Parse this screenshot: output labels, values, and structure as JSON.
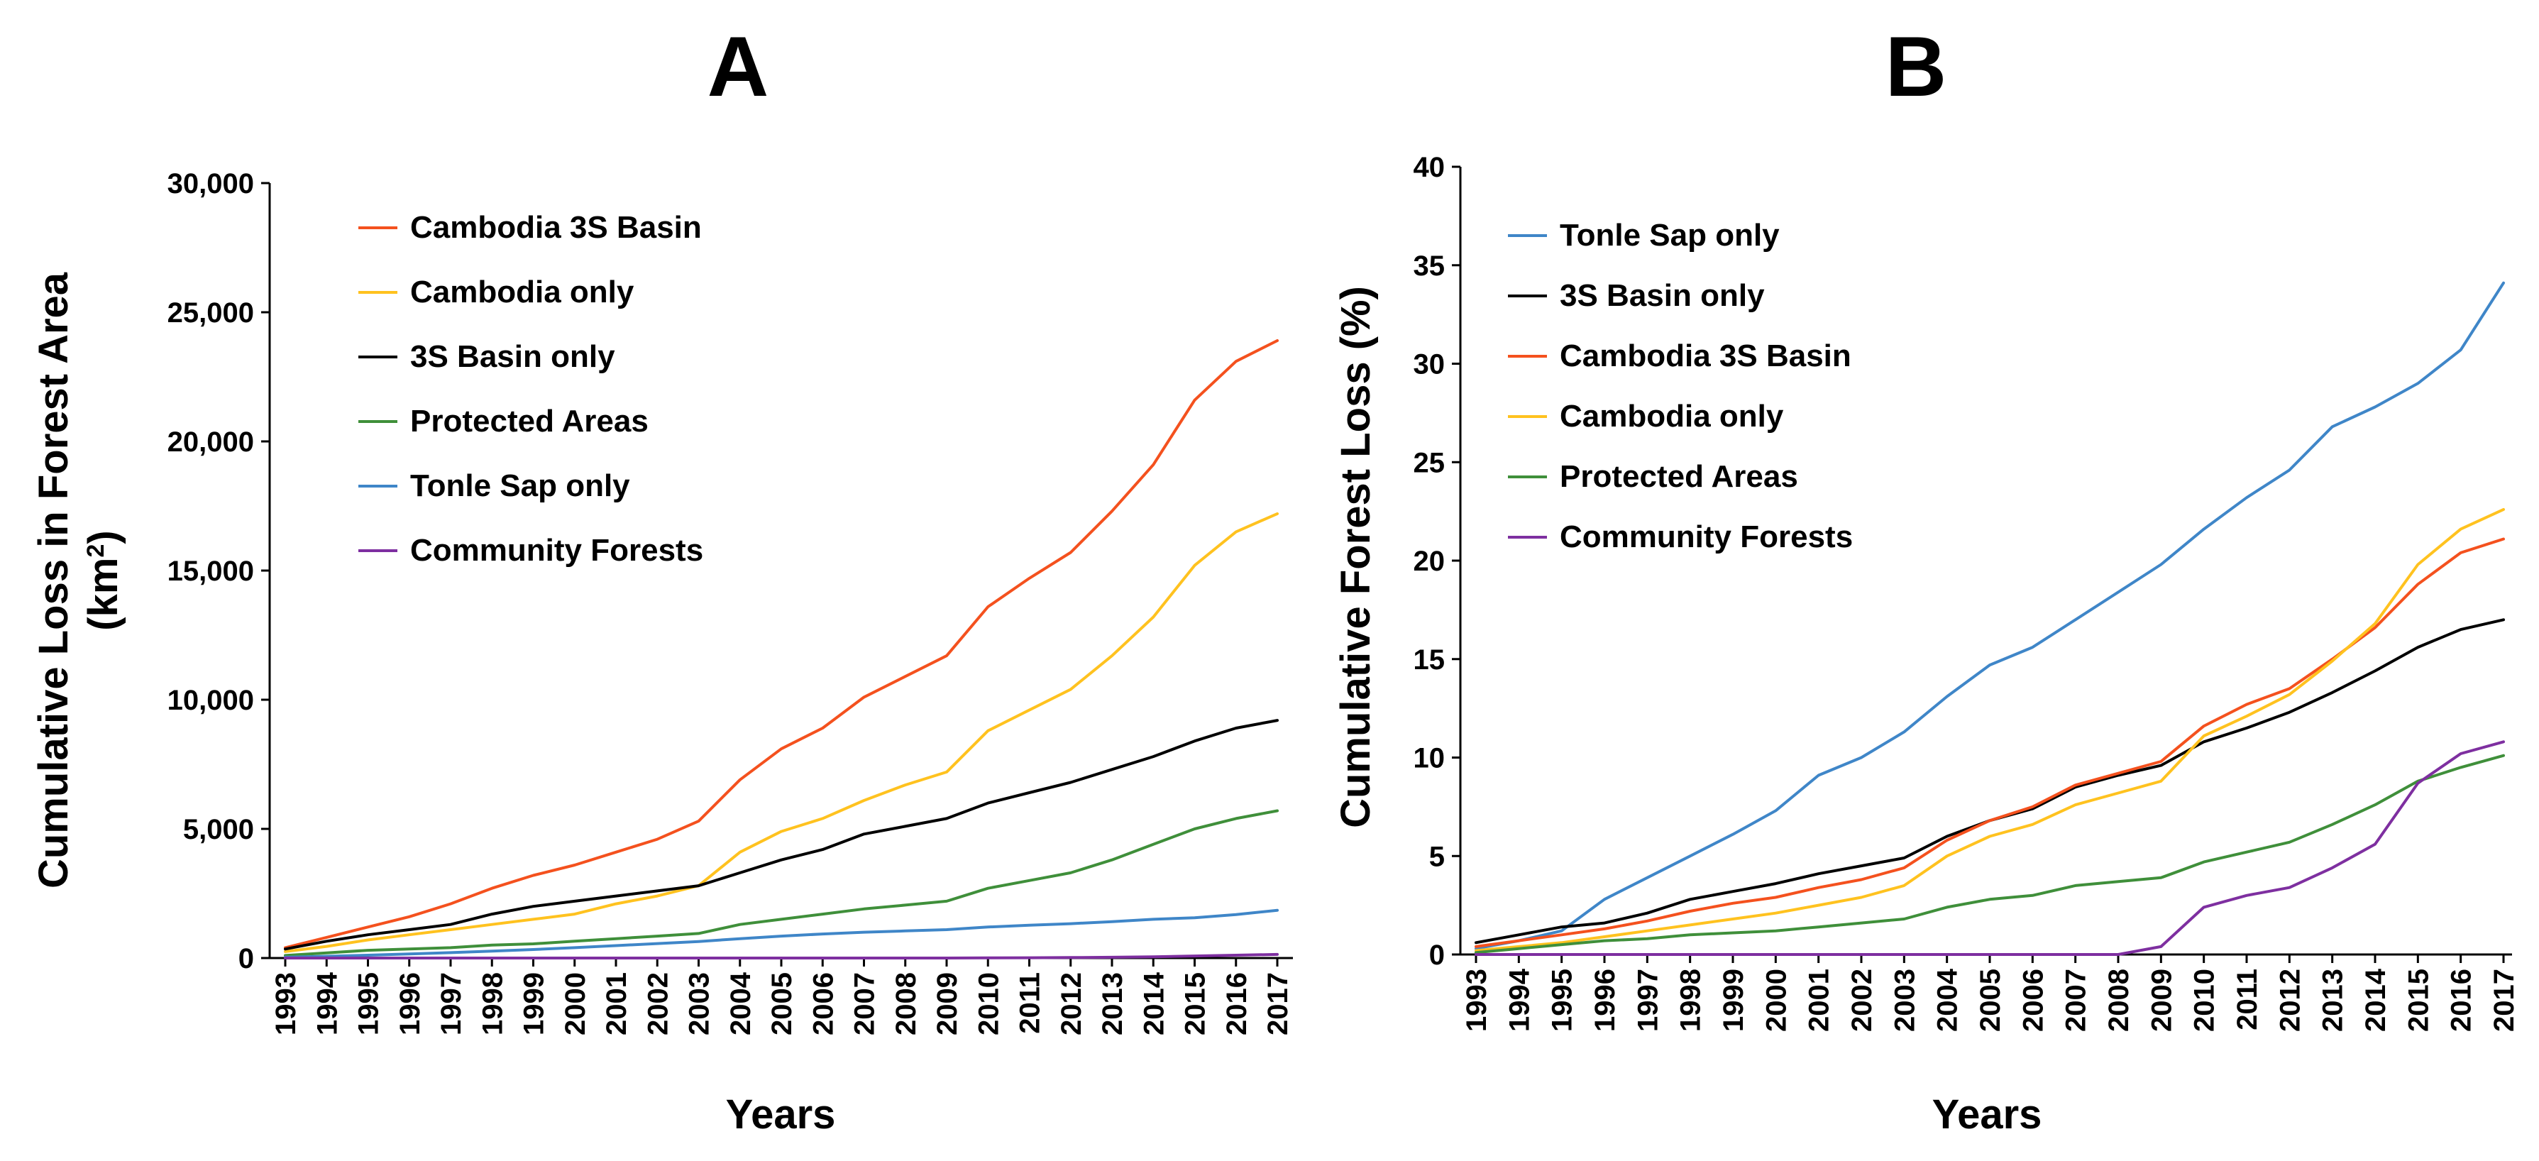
{
  "chart_data": [
    {
      "panel_label": "A",
      "type": "line",
      "xlabel": "Years",
      "ylabel_line1": "Cumulative Loss in Forest Area",
      "ylabel_line2_prefix": "(km",
      "ylabel_line2_sup": "2",
      "ylabel_line2_suffix": ")",
      "ylim": [
        0,
        30000
      ],
      "yticks": [
        0,
        5000,
        10000,
        15000,
        20000,
        25000,
        30000
      ],
      "ytick_labels": [
        "0",
        "5,000",
        "10,000",
        "15,000",
        "20,000",
        "25,000",
        "30,000"
      ],
      "legend_position": "top-left",
      "x": [
        "1993",
        "1994",
        "1995",
        "1996",
        "1997",
        "1998",
        "1999",
        "2000",
        "2001",
        "2002",
        "2003",
        "2004",
        "2005",
        "2006",
        "2007",
        "2008",
        "2009",
        "2010",
        "2011",
        "2012",
        "2013",
        "2014",
        "2015",
        "2016",
        "2017"
      ],
      "series": [
        {
          "name": "Cambodia 3S Basin",
          "color": "#f4511e",
          "values": [
            400,
            800,
            1200,
            1600,
            2100,
            2700,
            3200,
            3600,
            4100,
            4600,
            5300,
            6900,
            8100,
            8900,
            10100,
            10900,
            11700,
            13600,
            14700,
            15700,
            17300,
            19100,
            21600,
            23100,
            23900
          ]
        },
        {
          "name": "Cambodia only",
          "color": "#ffc21f",
          "values": [
            250,
            450,
            700,
            900,
            1100,
            1300,
            1500,
            1700,
            2100,
            2400,
            2800,
            4100,
            4900,
            5400,
            6100,
            6700,
            7200,
            8800,
            9600,
            10400,
            11700,
            13200,
            15200,
            16500,
            17200
          ]
        },
        {
          "name": "3S Basin only",
          "color": "#000000",
          "values": [
            350,
            650,
            900,
            1100,
            1300,
            1700,
            2000,
            2200,
            2400,
            2600,
            2800,
            3300,
            3800,
            4200,
            4800,
            5100,
            5400,
            6000,
            6400,
            6800,
            7300,
            7800,
            8400,
            8900,
            9200
          ]
        },
        {
          "name": "Protected Areas",
          "color": "#3f8f3a",
          "values": [
            100,
            200,
            300,
            350,
            400,
            500,
            550,
            650,
            750,
            850,
            950,
            1300,
            1500,
            1700,
            1900,
            2050,
            2200,
            2700,
            3000,
            3300,
            3800,
            4400,
            5000,
            5400,
            5700
          ]
        },
        {
          "name": "Tonle Sap only",
          "color": "#3f86c8",
          "values": [
            30,
            70,
            110,
            160,
            210,
            270,
            330,
            400,
            480,
            560,
            640,
            750,
            850,
            930,
            1000,
            1050,
            1100,
            1200,
            1270,
            1330,
            1410,
            1500,
            1560,
            1680,
            1850
          ]
        },
        {
          "name": "Community Forests",
          "color": "#7e2fa0",
          "values": [
            0,
            0,
            0,
            0,
            0,
            0,
            0,
            0,
            0,
            0,
            0,
            0,
            0,
            0,
            0,
            0,
            0,
            5,
            10,
            20,
            30,
            50,
            80,
            110,
            140
          ]
        }
      ]
    },
    {
      "panel_label": "B",
      "type": "line",
      "xlabel": "Years",
      "ylabel": "Cumulative Forest Loss (%)",
      "ylim": [
        0,
        40
      ],
      "yticks": [
        0,
        5,
        10,
        15,
        20,
        25,
        30,
        35,
        40
      ],
      "ytick_labels": [
        "0",
        "5",
        "10",
        "15",
        "20",
        "25",
        "30",
        "35",
        "40"
      ],
      "legend_position": "top-left",
      "x": [
        "1993",
        "1994",
        "1995",
        "1996",
        "1997",
        "1998",
        "1999",
        "2000",
        "2001",
        "2002",
        "2003",
        "2004",
        "2005",
        "2006",
        "2007",
        "2008",
        "2009",
        "2010",
        "2011",
        "2012",
        "2013",
        "2014",
        "2015",
        "2016",
        "2017"
      ],
      "series": [
        {
          "name": "Tonle Sap only",
          "color": "#3f86c8",
          "values": [
            0.3,
            0.7,
            1.2,
            2.8,
            3.9,
            5.0,
            6.1,
            7.3,
            9.1,
            10.0,
            11.3,
            13.1,
            14.7,
            15.6,
            17.0,
            18.4,
            19.8,
            21.6,
            23.2,
            24.6,
            26.8,
            27.8,
            29.0,
            30.7,
            34.1
          ]
        },
        {
          "name": "3S Basin only",
          "color": "#000000",
          "values": [
            0.6,
            1.0,
            1.4,
            1.6,
            2.1,
            2.8,
            3.2,
            3.6,
            4.1,
            4.5,
            4.9,
            6.0,
            6.8,
            7.4,
            8.5,
            9.1,
            9.6,
            10.8,
            11.5,
            12.3,
            13.3,
            14.4,
            15.6,
            16.5,
            17.0
          ]
        },
        {
          "name": "Cambodia 3S Basin",
          "color": "#f4511e",
          "values": [
            0.4,
            0.7,
            1.0,
            1.3,
            1.7,
            2.2,
            2.6,
            2.9,
            3.4,
            3.8,
            4.4,
            5.8,
            6.8,
            7.5,
            8.6,
            9.2,
            9.8,
            11.6,
            12.7,
            13.5,
            15.0,
            16.6,
            18.8,
            20.4,
            21.1
          ]
        },
        {
          "name": "Cambodia only",
          "color": "#ffc21f",
          "values": [
            0.2,
            0.4,
            0.6,
            0.9,
            1.2,
            1.5,
            1.8,
            2.1,
            2.5,
            2.9,
            3.5,
            5.0,
            6.0,
            6.6,
            7.6,
            8.2,
            8.8,
            11.1,
            12.1,
            13.2,
            14.9,
            16.8,
            19.8,
            21.6,
            22.6
          ]
        },
        {
          "name": "Protected Areas",
          "color": "#3f8f3a",
          "values": [
            0.1,
            0.3,
            0.5,
            0.7,
            0.8,
            1.0,
            1.1,
            1.2,
            1.4,
            1.6,
            1.8,
            2.4,
            2.8,
            3.0,
            3.5,
            3.7,
            3.9,
            4.7,
            5.2,
            5.7,
            6.6,
            7.6,
            8.8,
            9.5,
            10.1
          ]
        },
        {
          "name": "Community Forests",
          "color": "#7e2fa0",
          "values": [
            0,
            0,
            0,
            0,
            0,
            0,
            0,
            0,
            0,
            0,
            0,
            0,
            0,
            0,
            0,
            0,
            0.4,
            2.4,
            3.0,
            3.4,
            4.4,
            5.6,
            8.7,
            10.2,
            10.8
          ]
        }
      ]
    }
  ]
}
